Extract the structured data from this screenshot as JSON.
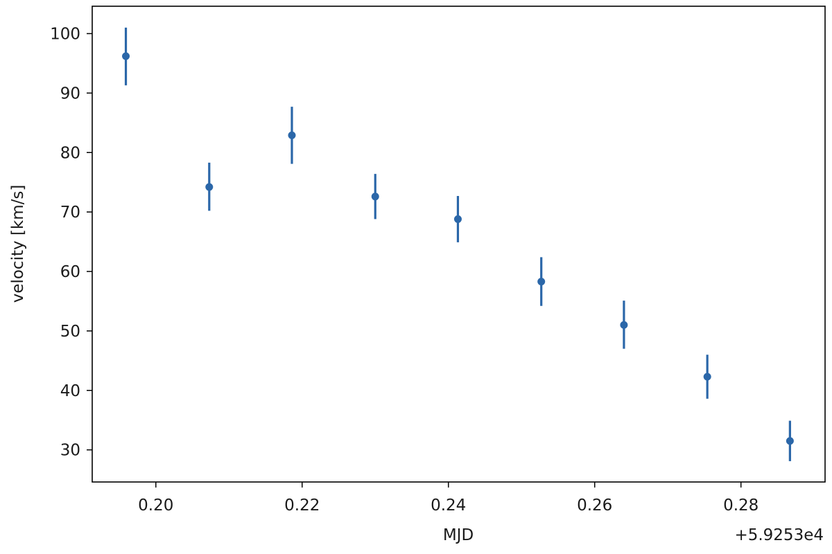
{
  "chart_data": {
    "type": "scatter",
    "title": "",
    "xlabel": "MJD",
    "ylabel": "velocity [km/s]",
    "x_offset_label": "+5.9253e4",
    "x_offset": 59253,
    "xlim": [
      0.1913,
      0.2915
    ],
    "ylim": [
      24.6,
      104.6
    ],
    "xticks": [
      0.2,
      0.22,
      0.24,
      0.26,
      0.28
    ],
    "xtick_labels": [
      "0.20",
      "0.22",
      "0.24",
      "0.26",
      "0.28"
    ],
    "yticks": [
      30,
      40,
      50,
      60,
      70,
      80,
      90,
      100
    ],
    "ytick_labels": [
      "30",
      "40",
      "50",
      "60",
      "70",
      "80",
      "90",
      "100"
    ],
    "grid": false,
    "legend": false,
    "color": "#2b67a9",
    "series": [
      {
        "x": [
          0.1959,
          0.2073,
          0.2186,
          0.23,
          0.2413,
          0.2527,
          0.264,
          0.2754,
          0.2867
        ],
        "y": [
          96.2,
          74.2,
          82.9,
          72.6,
          68.8,
          58.3,
          51.0,
          42.3,
          31.5
        ],
        "yerr_low": [
          4.9,
          4.0,
          4.8,
          3.8,
          3.9,
          4.1,
          4.0,
          3.7,
          3.4
        ],
        "yerr_high": [
          4.8,
          4.1,
          4.8,
          3.8,
          3.9,
          4.1,
          4.1,
          3.7,
          3.4
        ]
      }
    ]
  }
}
